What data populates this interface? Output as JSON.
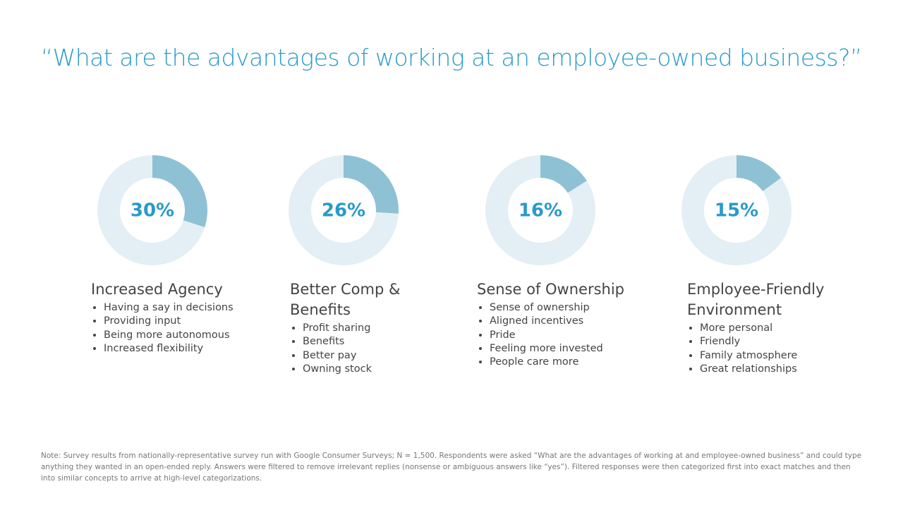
{
  "title": "“What are the advantages of working at an employee-owned business?”",
  "chart_data": [
    {
      "type": "donut",
      "title": "Increased Agency",
      "values": [
        30,
        70
      ],
      "value_labels": [
        "30%",
        null
      ],
      "colors": [
        "#8fc1d5",
        "#e3eff4"
      ],
      "bullets": [
        "Having a say in decisions",
        "Providing input",
        "Being more autonomous",
        "Increased flexibility"
      ]
    },
    {
      "type": "donut",
      "title": "Better Comp & Benefits",
      "values": [
        26,
        74
      ],
      "value_labels": [
        "26%",
        null
      ],
      "colors": [
        "#8fc1d5",
        "#e3eff4"
      ],
      "bullets": [
        "Profit sharing",
        "Benefits",
        "Better pay",
        "Owning stock"
      ]
    },
    {
      "type": "donut",
      "title": "Sense of Ownership",
      "values": [
        16,
        84
      ],
      "value_labels": [
        "16%",
        null
      ],
      "colors": [
        "#8fc1d5",
        "#e3eff4"
      ],
      "bullets": [
        "Sense of ownership",
        "Aligned incentives",
        "Pride",
        "Feeling more invested",
        "People care more"
      ]
    },
    {
      "type": "donut",
      "title": "Employee-Friendly Environment",
      "values": [
        15,
        85
      ],
      "value_labels": [
        "15%",
        null
      ],
      "colors": [
        "#8fc1d5",
        "#e3eff4"
      ],
      "bullets": [
        "More personal",
        "Friendly",
        "Family atmosphere",
        "Great relationships"
      ]
    }
  ],
  "note": "Note:  Survey results from nationally-representative survey run with Google Consumer Surveys; N = 1,500. Respondents were asked “What are the advantages of working at and employee-owned business” and could type anything they wanted in an open-ended reply. Answers were filtered to remove irrelevant replies (nonsense or ambiguous answers like “yes”). Filtered responses were then categorized first into exact matches and then into similar concepts to arrive at high-level categorizations."
}
